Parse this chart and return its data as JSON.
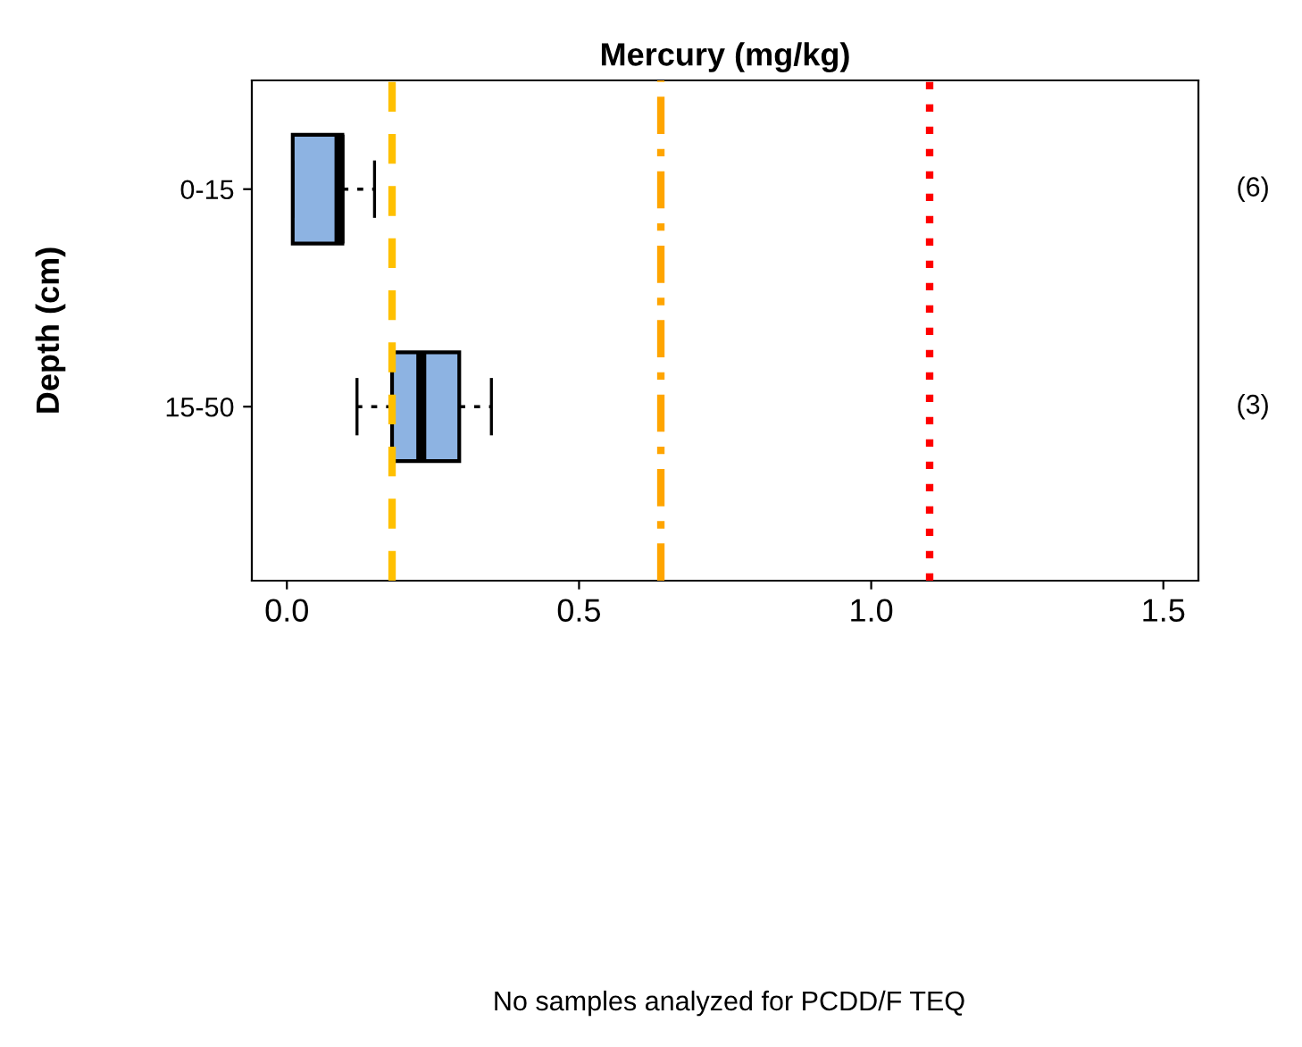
{
  "chart_data": {
    "type": "box",
    "orientation": "horizontal",
    "title": "Mercury (mg/kg)",
    "ylabel": "Depth (cm)",
    "categories": [
      "0-15",
      "15-50"
    ],
    "boxes": [
      {
        "low": 0.01,
        "q1": 0.01,
        "median": 0.09,
        "q3": 0.095,
        "high": 0.15
      },
      {
        "low": 0.12,
        "q1": 0.18,
        "median": 0.23,
        "q3": 0.295,
        "high": 0.35
      }
    ],
    "color": "#8db3e2",
    "xlim": [
      -0.06,
      1.56
    ],
    "xticks": [
      {
        "value": 0,
        "label": "0.0"
      },
      0.5,
      {
        "value": 1,
        "label": "1.0"
      },
      1.5
    ],
    "ref_lines": [
      {
        "axis": "x",
        "value": 0.18,
        "color": "#ffc000",
        "line_style": "dashed"
      },
      {
        "axis": "x",
        "value": 0.64,
        "color": "#ffa500",
        "line_style": "dashdot"
      },
      {
        "axis": "x",
        "value": 1.1,
        "color": "#ff0000",
        "line_style": "dotted"
      }
    ],
    "annotations": [
      "(6)",
      "(3)",
      "No samples analyzed for PCDD/F TEQ"
    ],
    "grid": false,
    "legend": false
  }
}
